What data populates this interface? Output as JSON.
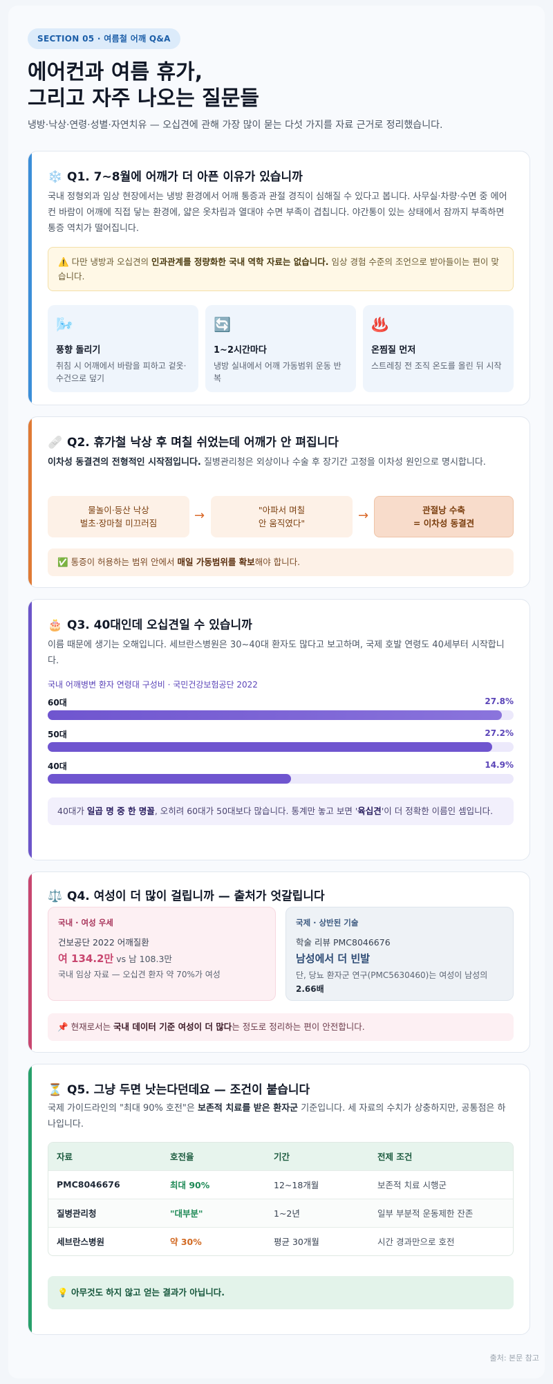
{
  "header": {
    "badge": "SECTION 05 · 여름철 어깨 Q&A",
    "title_line1": "에어컨과 여름 휴가,",
    "title_line2": "그리고 자주 나오는 질문들",
    "lead": "냉방·낙상·연령·성별·자연치유 — 오십견에 관해 가장 많이 묻는 다섯 가지를 자료 근거로 정리했습니다."
  },
  "q1": {
    "icon": "❄️",
    "title": "Q1. 7~8월에 어깨가 더 아픈 이유가 있습니까",
    "body": "국내 정형외과 임상 현장에서는 냉방 환경에서 어깨 통증과 관절 경직이 심해질 수 있다고 봅니다. 사무실·차량·수면 중 에어컨 바람이 어깨에 직접 닿는 환경에, 얇은 옷차림과 열대야 수면 부족이 겹칩니다. 야간통이 있는 상태에서 잠까지 부족하면 통증 역치가 떨어집니다.",
    "warn_pre": "다만 냉방과 오십견의 ",
    "warn_bold": "인과관계를 정량화한 국내 역학 자료는 없습니다.",
    "warn_post": " 임상 경험 수준의 조언으로 받아들이는 편이 맞습니다.",
    "warn_icon": "⚠️",
    "tips": [
      {
        "icon": "🌬️",
        "title": "풍향 돌리기",
        "desc": "취침 시 어깨에서 바람을 피하고 겉옷·수건으로 덮기"
      },
      {
        "icon": "🔄",
        "title": "1~2시간마다",
        "desc": "냉방 실내에서 어깨 가동범위 운동 반복"
      },
      {
        "icon": "♨️",
        "title": "온찜질 먼저",
        "desc": "스트레칭 전 조직 온도를 올린 뒤 시작"
      }
    ]
  },
  "q2": {
    "icon": "🩹",
    "title": "Q2. 휴가철 낙상 후 며칠 쉬었는데 어깨가 안 펴집니다",
    "body_bold": "이차성 동결견의 전형적인 시작점입니다.",
    "body_rest": " 질병관리청은 외상이나 수술 후 장기간 고정을 이차성 원인으로 명시합니다.",
    "flow1_l1": "물놀이·등산 낙상",
    "flow1_l2": "벌초·장마철 미끄러짐",
    "flow2_l1": "\"아파서 며칠",
    "flow2_l2": "안 움직였다\"",
    "flow3_l1": "관절낭 수축",
    "flow3_l2": "= 이차성 동결견",
    "arrow": "→",
    "note_icon": "✅",
    "note_pre": "통증이 허용하는 범위 안에서 ",
    "note_bold": "매일 가동범위를 확보",
    "note_post": "해야 합니다."
  },
  "q3": {
    "icon": "🎂",
    "title": "Q3. 40대인데 오십견일 수 있습니까",
    "body": "이름 때문에 생기는 오해입니다. 세브란스병원은 30~40대 환자도 많다고 보고하며, 국제 호발 연령도 40세부터 시작합니다.",
    "chart_caption": "국내 어깨병변 환자 연령대 구성비 · 국민건강보험공단 2022",
    "note_pre": "40대가 ",
    "note_bold1": "일곱 명 중 한 명꼴",
    "note_mid": ", 오히려 60대가 50대보다 많습니다. 통계만 놓고 보면 '",
    "note_bold2": "육십견",
    "note_post": "'이 더 정확한 이름인 셈입니다."
  },
  "chart_data": {
    "type": "bar",
    "title": "국내 어깨병변 환자 연령대 구성비 · 국민건강보험공단 2022",
    "categories": [
      "60대",
      "50대",
      "40대"
    ],
    "values": [
      27.8,
      27.2,
      14.9
    ],
    "value_labels": [
      "27.8%",
      "27.2%",
      "14.9%"
    ],
    "unit": "%",
    "xlim": [
      0,
      28.5
    ],
    "colors": {
      "fill": "#6f55cf",
      "track": "#ece9fb"
    }
  },
  "q4": {
    "icon": "⚖️",
    "title": "Q4. 여성이 더 많이 걸립니까 — 출처가 엇갈립니다",
    "left_tag": "국내 · 여성 우세",
    "left_src": "건보공단 2022 어깨질환",
    "left_big": "여 134.2만",
    "left_vs": " vs 남 108.3만",
    "left_note": "국내 임상 자료 — 오십견 환자 약 70%가 여성",
    "right_tag": "국제 · 상반된 기술",
    "right_src": "학술 리뷰 PMC8046676",
    "right_big": "남성에서 더 빈발",
    "right_note": "단, 당뇨 환자군 연구(PMC5630460)는 여성이 남성의",
    "right_note_bold": "2.66배",
    "note_icon": "📌",
    "note_pre": "현재로서는 ",
    "note_bold": "국내 데이터 기준 여성이 더 많다",
    "note_post": "는 정도로 정리하는 편이 안전합니다."
  },
  "q5": {
    "icon": "⏳",
    "title": "Q5. 그냥 두면 낫는다던데요 — 조건이 붙습니다",
    "body_pre": "국제 가이드라인의 \"최대 90% 호전\"은 ",
    "body_bold": "보존적 치료를 받은 환자군",
    "body_post": " 기준입니다. 세 자료의 수치가 상충하지만, 공통점은 하나입니다.",
    "table": {
      "headers": [
        "자료",
        "호전율",
        "기간",
        "전제 조건"
      ],
      "rows": [
        [
          "PMC8046676",
          "최대 90%",
          "12~18개월",
          "보존적 치료 시행군"
        ],
        [
          "질병관리청",
          "\"대부분\"",
          "1~2년",
          "일부 부분적 운동제한 잔존"
        ],
        [
          "세브란스병원",
          "약 30%",
          "평균 30개월",
          "시간 경과만으로 호전"
        ]
      ]
    },
    "note_icon": "💡",
    "note": "아무것도 하지 않고 얻는 결과가 아닙니다."
  },
  "footer": "출처: 본문 참고"
}
